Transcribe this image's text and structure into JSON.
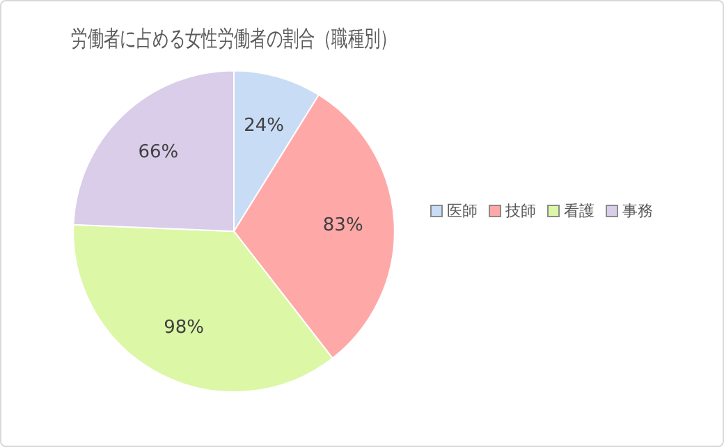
{
  "chart_data": {
    "type": "pie",
    "title": "労働者に占める女性労働者の割合（職種別）",
    "categories": [
      "医師",
      "技師",
      "看護",
      "事務"
    ],
    "values": [
      24,
      83,
      98,
      66
    ],
    "value_labels": [
      "24%",
      "83%",
      "98%",
      "66%"
    ],
    "colors": [
      "#c9dcf5",
      "#ffa8a8",
      "#dcf7a6",
      "#d9cdea"
    ],
    "legend": "right"
  }
}
